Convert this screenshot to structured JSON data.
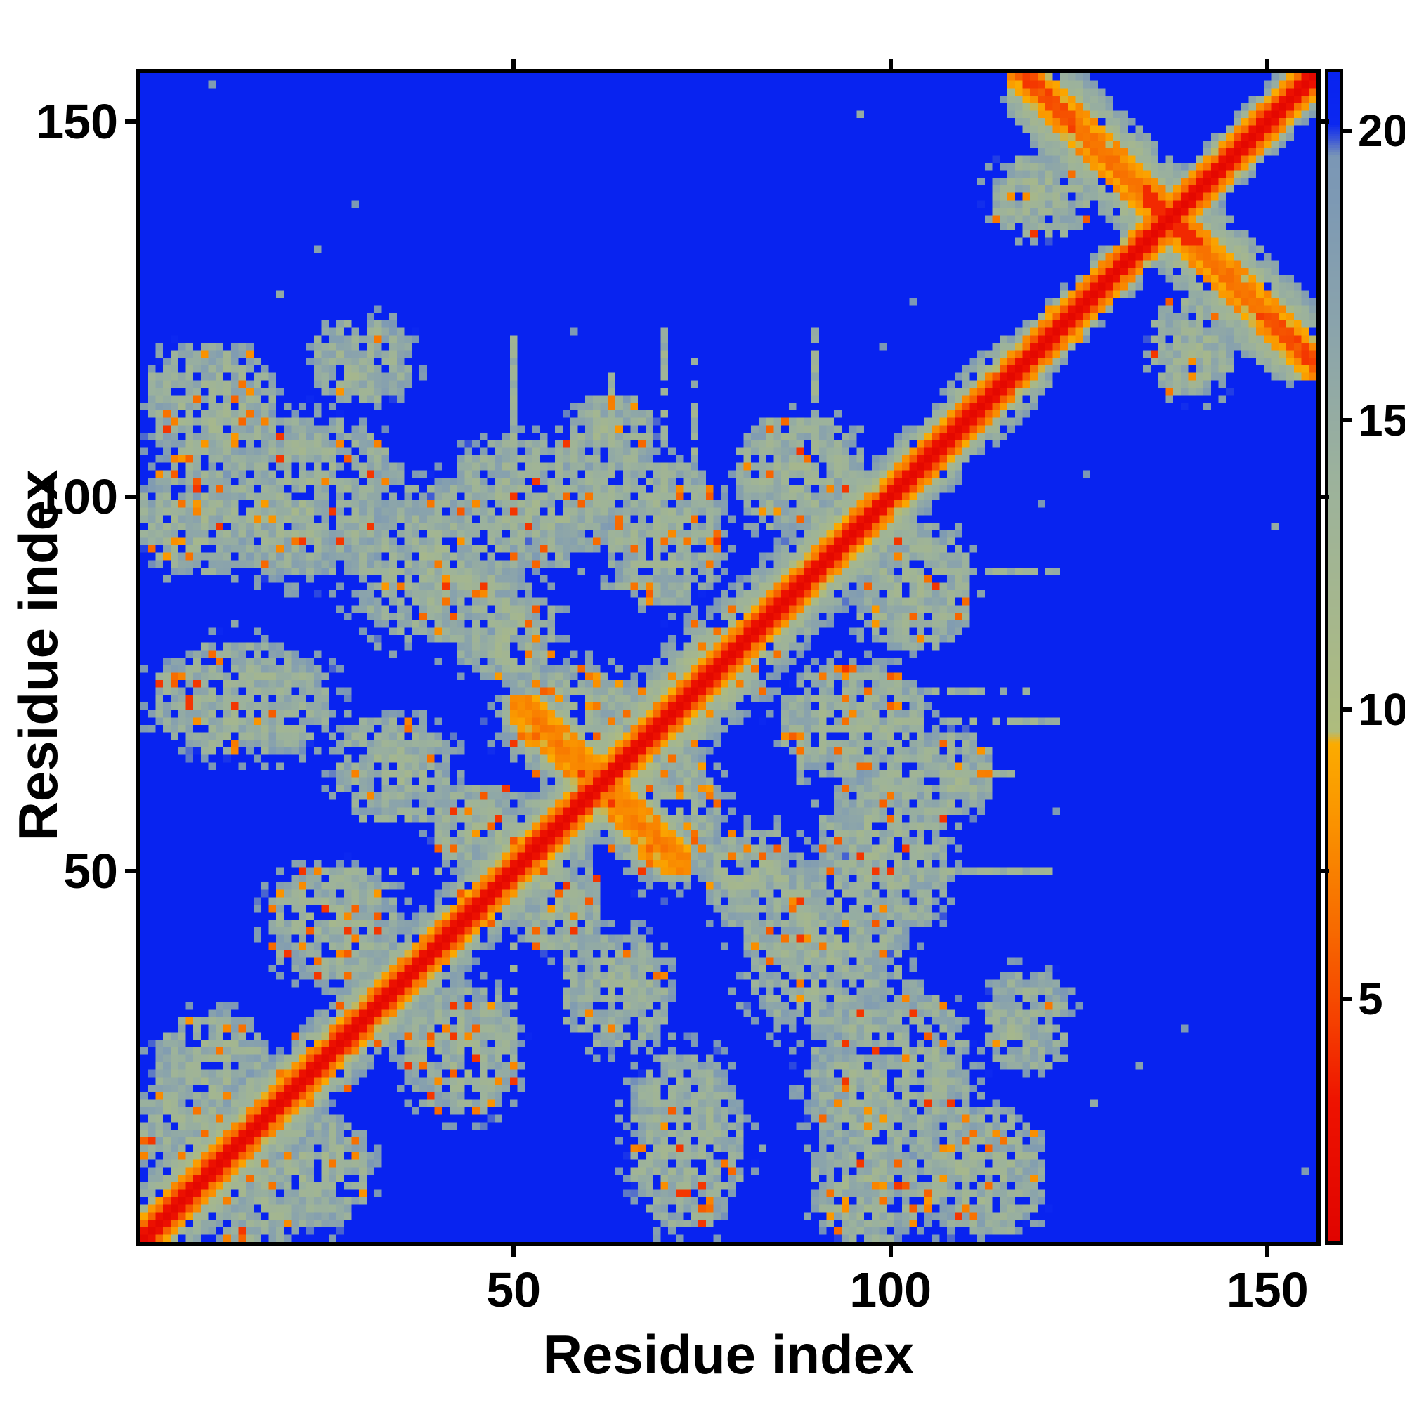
{
  "chart_data": {
    "type": "heatmap",
    "title": "",
    "xlabel": "Residue index",
    "ylabel": "Residue index",
    "x_ticks": [
      50,
      100,
      150
    ],
    "y_ticks": [
      50,
      100,
      150
    ],
    "x_range": [
      0,
      156
    ],
    "y_range": [
      0,
      156
    ],
    "n_residues": 156,
    "grid": false,
    "legend_position": "none",
    "colorbar": {
      "position": "right",
      "ticks": [
        5,
        10,
        15,
        20
      ],
      "vmin": 0.8,
      "vmax": 21.0,
      "over_color": "#0823f0"
    },
    "colormap_stops": [
      [
        0.8,
        "#e00400"
      ],
      [
        3.2,
        "#ee1200"
      ],
      [
        4.6,
        "#f54000"
      ],
      [
        6.2,
        "#f76a00"
      ],
      [
        8.2,
        "#fa9600"
      ],
      [
        9.4,
        "#fbab00"
      ],
      [
        9.62,
        "#aebc7d"
      ],
      [
        11.5,
        "#a6b78c"
      ],
      [
        14.0,
        "#9cb29c"
      ],
      [
        16.5,
        "#8ba4ab"
      ],
      [
        18.8,
        "#7d99b4"
      ],
      [
        19.55,
        "#7b97b5"
      ],
      [
        19.85,
        "#3a55d8"
      ],
      [
        20.1,
        "#0b27f1"
      ],
      [
        21.0,
        "#0823f0"
      ]
    ],
    "structure": {
      "description": "Symmetric protein residue-residue distance map: red band along the main diagonal flanked by orange then a sage/steel haze; an antiparallel hairpin produces an X-shaped anti-diagonal feature crossing the main diagonal near residue 137 (residues ~118-156); scattered long-range contact clusters with orange speckles and blue holes fill the lower-left half (residues ~1-120); background (distances beyond colorbar maximum) is pure blue.",
      "diagonal_values": {
        "d0": 1.5,
        "d1": 2.8,
        "d2": 5.0,
        "d3": 7.4
      },
      "diag_width_profile": [
        [
          20,
          8
        ],
        [
          48,
          7
        ],
        [
          58,
          8
        ],
        [
          78,
          10
        ],
        [
          100,
          9
        ],
        [
          118,
          7
        ],
        [
          156,
          5
        ]
      ],
      "hairpins": [
        {
          "sum": 274,
          "lo": 116,
          "hi": 157,
          "haze": 8,
          "strong": true
        },
        {
          "sum": 123,
          "lo": 50,
          "hi": 73,
          "haze": 4,
          "strong": false
        }
      ],
      "clusters": [
        [
          6,
          16,
          7,
          6
        ],
        [
          10,
          24,
          8,
          7
        ],
        [
          26,
          43,
          9,
          8
        ],
        [
          14,
          73,
          12,
          8
        ],
        [
          34,
          64,
          8,
          7
        ],
        [
          22,
          100,
          14,
          11
        ],
        [
          8,
          97,
          8,
          8
        ],
        [
          10,
          112,
          9,
          9
        ],
        [
          30,
          118,
          7,
          6
        ],
        [
          52,
          99,
          11,
          9
        ],
        [
          49,
          82,
          7,
          7
        ],
        [
          57,
          70,
          9,
          8
        ],
        [
          70,
          95,
          8,
          10
        ],
        [
          88,
          103,
          9,
          8
        ],
        [
          40,
          91,
          12,
          11
        ],
        [
          63,
          108,
          6,
          6
        ],
        [
          120,
          140,
          7,
          6
        ],
        [
          46,
          56,
          7,
          6
        ]
      ],
      "streaks": [
        [
          70,
          98,
          122
        ],
        [
          74,
          98,
          118
        ],
        [
          63,
          100,
          116
        ],
        [
          50,
          106,
          121
        ],
        [
          90,
          106,
          122
        ],
        [
          84,
          96,
          112
        ],
        [
          88,
          62,
          72
        ],
        [
          94,
          64,
          71
        ],
        [
          50,
          25,
          40
        ],
        [
          57,
          30,
          44
        ]
      ],
      "noise": {
        "cluster_hole_p": 0.14,
        "orange_speckle_p": 0.055,
        "red_speckle_p": 0.012,
        "fringe_p": 0.25,
        "haze_hole_base": 0.05,
        "haze_hole_edge": 0.28,
        "stray_dot_p": 0.002
      }
    }
  }
}
